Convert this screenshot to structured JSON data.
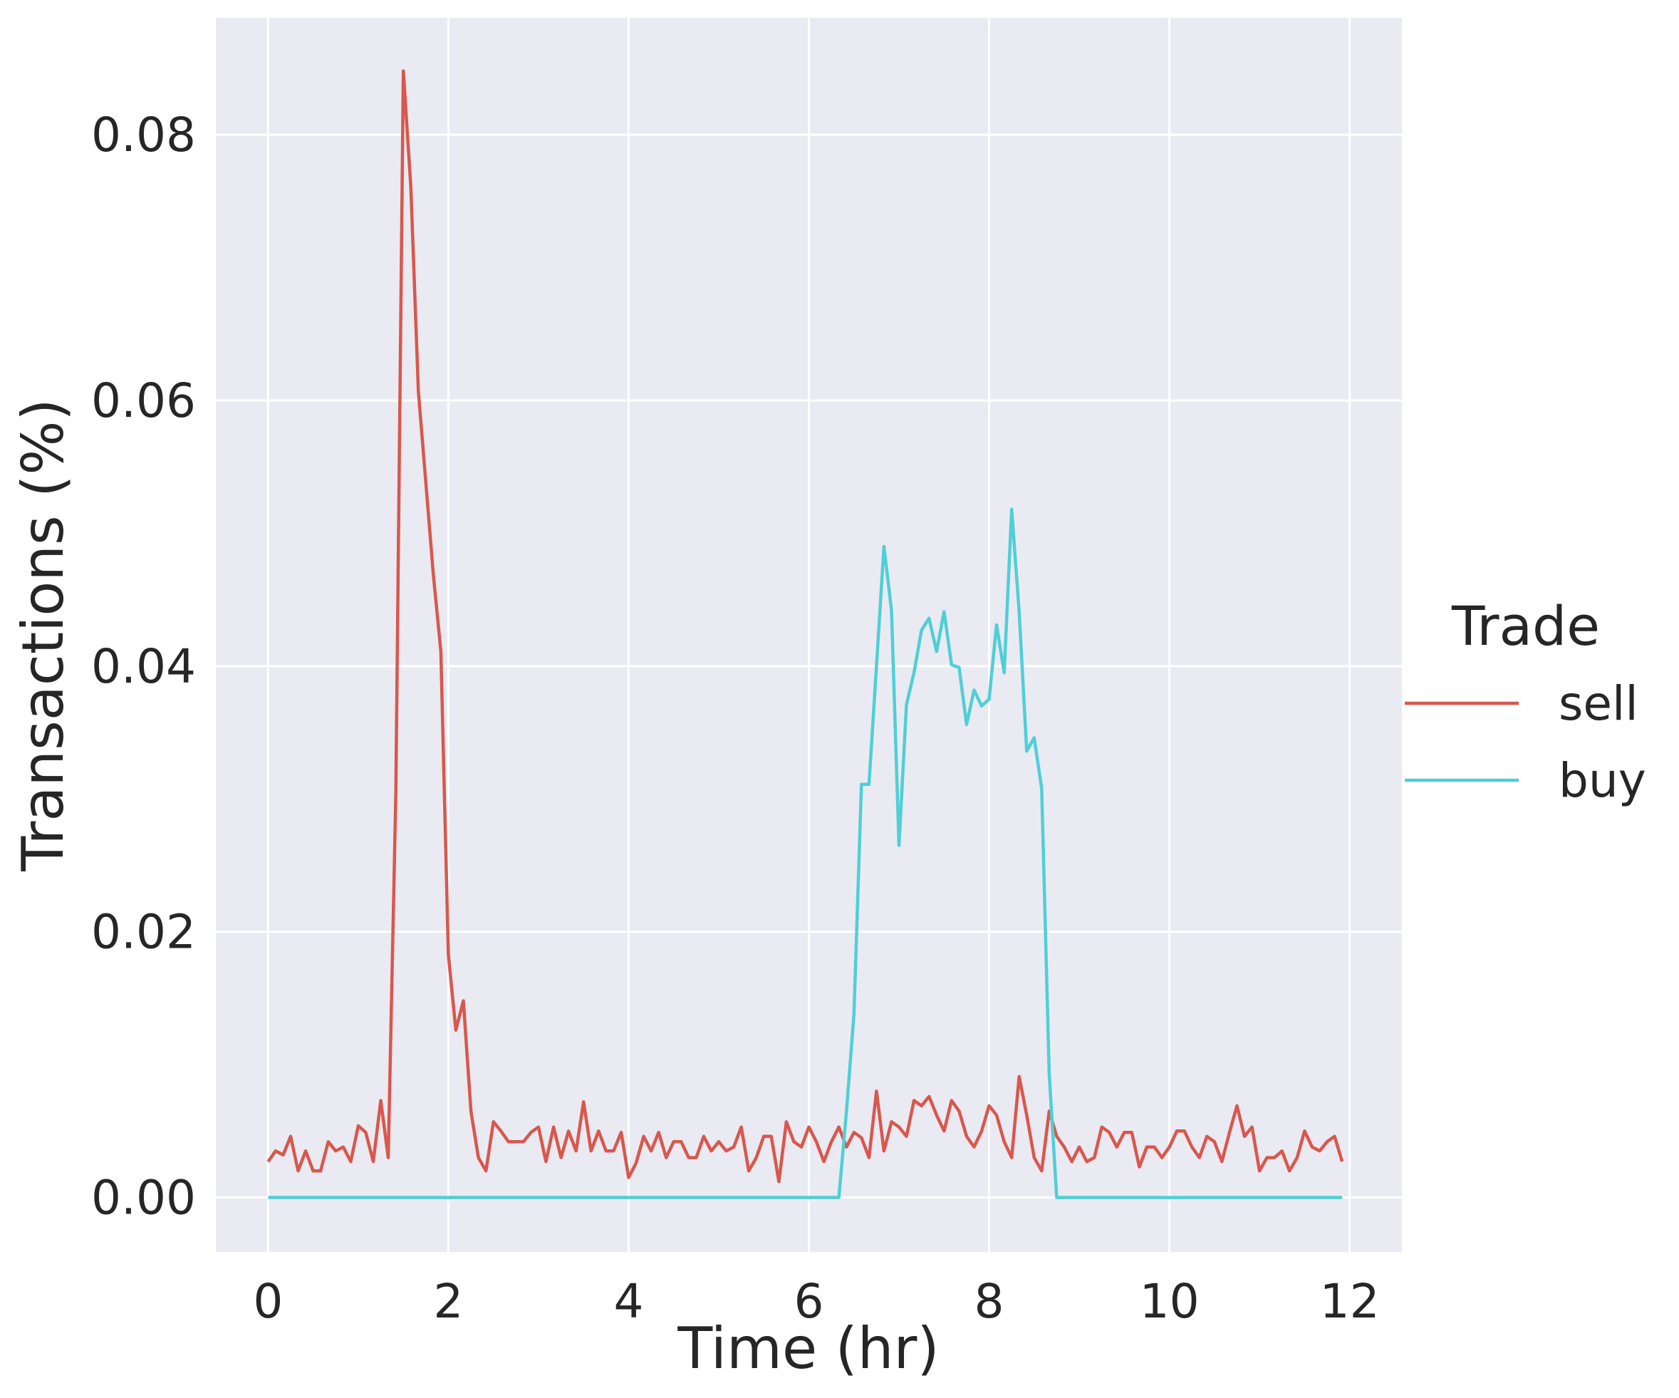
{
  "chart_data": {
    "type": "line",
    "xlabel": "Time (hr)",
    "ylabel": "Transactions (%)",
    "xlim": [
      -0.58,
      12.58
    ],
    "ylim": [
      -0.0041,
      0.0888
    ],
    "xticks": [
      0,
      2,
      4,
      6,
      8,
      10,
      12
    ],
    "xtick_labels": [
      "0",
      "2",
      "4",
      "6",
      "8",
      "10",
      "12"
    ],
    "yticks": [
      0.0,
      0.02,
      0.04,
      0.06,
      0.08
    ],
    "ytick_labels": [
      "0.00",
      "0.02",
      "0.04",
      "0.06",
      "0.08"
    ],
    "grid": true,
    "legend": {
      "title": "Trade",
      "placement": "center-right"
    },
    "colors": {
      "background": "#eaeaf2",
      "grid": "#ffffff",
      "sell": "#d9574c",
      "buy": "#4fcfd6"
    },
    "series": [
      {
        "name": "sell",
        "x": [
          0,
          0.083,
          0.167,
          0.25,
          0.333,
          0.417,
          0.5,
          0.583,
          0.667,
          0.75,
          0.833,
          0.917,
          1.0,
          1.083,
          1.167,
          1.25,
          1.333,
          1.417,
          1.5,
          1.583,
          1.667,
          1.75,
          1.833,
          1.917,
          2.0,
          2.083,
          2.167,
          2.25,
          2.333,
          2.417,
          2.5,
          2.583,
          2.667,
          2.75,
          2.833,
          2.917,
          3.0,
          3.083,
          3.167,
          3.25,
          3.333,
          3.417,
          3.5,
          3.583,
          3.667,
          3.75,
          3.833,
          3.917,
          4.0,
          4.083,
          4.167,
          4.25,
          4.333,
          4.417,
          4.5,
          4.583,
          4.667,
          4.75,
          4.833,
          4.917,
          5.0,
          5.083,
          5.167,
          5.25,
          5.333,
          5.417,
          5.5,
          5.583,
          5.667,
          5.75,
          5.833,
          5.917,
          6.0,
          6.083,
          6.167,
          6.25,
          6.333,
          6.417,
          6.5,
          6.583,
          6.667,
          6.75,
          6.833,
          6.917,
          7.0,
          7.083,
          7.167,
          7.25,
          7.333,
          7.417,
          7.5,
          7.583,
          7.667,
          7.75,
          7.833,
          7.917,
          8.0,
          8.083,
          8.167,
          8.25,
          8.333,
          8.417,
          8.5,
          8.583,
          8.667,
          8.75,
          8.833,
          8.917,
          9.0,
          9.083,
          9.167,
          9.25,
          9.333,
          9.417,
          9.5,
          9.583,
          9.667,
          9.75,
          9.833,
          9.917,
          10.0,
          10.083,
          10.167,
          10.25,
          10.333,
          10.417,
          10.5,
          10.583,
          10.667,
          10.75,
          10.833,
          10.917,
          11.0,
          11.083,
          11.167,
          11.25,
          11.333,
          11.417,
          11.5,
          11.583,
          11.667,
          11.75,
          11.833,
          11.917
        ],
        "values": [
          0.0027,
          0.0035,
          0.0032,
          0.0046,
          0.002,
          0.0035,
          0.002,
          0.002,
          0.0042,
          0.0035,
          0.0038,
          0.0027,
          0.0054,
          0.0049,
          0.0027,
          0.0073,
          0.003,
          0.0305,
          0.0848,
          0.0761,
          0.0607,
          0.0538,
          0.0469,
          0.0411,
          0.0183,
          0.0126,
          0.0148,
          0.0065,
          0.003,
          0.002,
          0.0057,
          0.005,
          0.0042,
          0.0042,
          0.0042,
          0.0049,
          0.0053,
          0.0027,
          0.0053,
          0.003,
          0.005,
          0.0035,
          0.0072,
          0.0035,
          0.005,
          0.0035,
          0.0035,
          0.0049,
          0.0015,
          0.0026,
          0.0046,
          0.0035,
          0.0049,
          0.003,
          0.0042,
          0.0042,
          0.003,
          0.003,
          0.0046,
          0.0035,
          0.0042,
          0.0035,
          0.0038,
          0.0053,
          0.002,
          0.003,
          0.0046,
          0.0046,
          0.0012,
          0.0057,
          0.0042,
          0.0038,
          0.0053,
          0.0042,
          0.0027,
          0.0042,
          0.0053,
          0.0038,
          0.0049,
          0.0045,
          0.003,
          0.008,
          0.0035,
          0.0057,
          0.0053,
          0.0046,
          0.0073,
          0.0069,
          0.0076,
          0.0062,
          0.005,
          0.0073,
          0.0065,
          0.0046,
          0.0038,
          0.005,
          0.0069,
          0.0062,
          0.0042,
          0.003,
          0.0091,
          0.0062,
          0.003,
          0.002,
          0.0065,
          0.0046,
          0.0038,
          0.0027,
          0.0038,
          0.0027,
          0.003,
          0.0053,
          0.0049,
          0.0038,
          0.0049,
          0.0049,
          0.0023,
          0.0038,
          0.0038,
          0.003,
          0.0038,
          0.005,
          0.005,
          0.0038,
          0.003,
          0.0046,
          0.0042,
          0.0027,
          0.0049,
          0.0069,
          0.0046,
          0.0053,
          0.002,
          0.003,
          0.003,
          0.0035,
          0.002,
          0.003,
          0.005,
          0.0038,
          0.0035,
          0.0042,
          0.0046,
          0.0027
        ]
      },
      {
        "name": "buy",
        "x": [
          0,
          6.333,
          6.417,
          6.5,
          6.583,
          6.667,
          6.75,
          6.833,
          6.917,
          7.0,
          7.083,
          7.167,
          7.25,
          7.333,
          7.417,
          7.5,
          7.583,
          7.667,
          7.75,
          7.833,
          7.917,
          8.0,
          8.083,
          8.167,
          8.25,
          8.333,
          8.417,
          8.5,
          8.583,
          8.667,
          8.75,
          11.917
        ],
        "values": [
          0.0,
          0.0,
          0.0065,
          0.0138,
          0.0311,
          0.0311,
          0.04,
          0.049,
          0.0442,
          0.0265,
          0.0371,
          0.0395,
          0.0427,
          0.0436,
          0.0411,
          0.0441,
          0.0401,
          0.0399,
          0.0356,
          0.0382,
          0.037,
          0.0375,
          0.0431,
          0.0395,
          0.0518,
          0.0441,
          0.0336,
          0.0346,
          0.0308,
          0.0093,
          0.0,
          0.0
        ]
      }
    ]
  }
}
